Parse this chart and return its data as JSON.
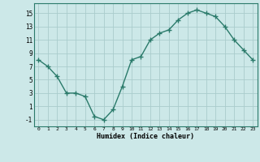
{
  "x": [
    0,
    1,
    2,
    3,
    4,
    5,
    6,
    7,
    8,
    9,
    10,
    11,
    12,
    13,
    14,
    15,
    16,
    17,
    18,
    19,
    20,
    21,
    22,
    23
  ],
  "y": [
    8.0,
    7.0,
    5.5,
    3.0,
    3.0,
    2.5,
    -0.5,
    -1.0,
    0.5,
    4.0,
    8.0,
    8.5,
    11.0,
    12.0,
    12.5,
    14.0,
    15.0,
    15.5,
    15.0,
    14.5,
    13.0,
    11.0,
    9.5,
    8.0
  ],
  "line_color": "#2a7a6a",
  "marker": "+",
  "marker_size": 4,
  "bg_color": "#cce8e8",
  "grid_color": "#aacccc",
  "xlabel": "Humidex (Indice chaleur)",
  "yticks": [
    -1,
    1,
    3,
    5,
    7,
    9,
    11,
    13,
    15
  ],
  "xticks": [
    0,
    1,
    2,
    3,
    4,
    5,
    6,
    7,
    8,
    9,
    10,
    11,
    12,
    13,
    14,
    15,
    16,
    17,
    18,
    19,
    20,
    21,
    22,
    23
  ],
  "ylim": [
    -2.0,
    16.5
  ],
  "xlim": [
    -0.5,
    23.5
  ]
}
